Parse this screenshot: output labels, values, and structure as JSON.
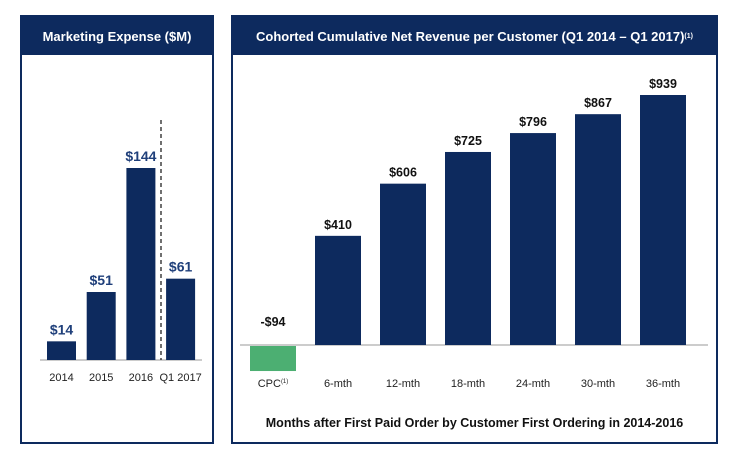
{
  "chart_data": [
    {
      "type": "bar",
      "title": "Marketing Expense ($M)",
      "categories": [
        "2014",
        "2015",
        "2016",
        "Q1 2017"
      ],
      "values": [
        14,
        51,
        144,
        61
      ],
      "data_labels": [
        "$14",
        "$51",
        "$144",
        "$61"
      ],
      "ylim": [
        0,
        150
      ],
      "grid": false,
      "bar_color": "#0d2a5e",
      "label_color": "#1f3f7a",
      "separator": "dashed line before Q1 2017"
    },
    {
      "type": "bar",
      "title": "Cohorted Cumulative Net Revenue per Customer (Q1 2014 – Q1 2017)",
      "title_footnote": "(1)",
      "categories": [
        "CPC",
        "6-mth",
        "12-mth",
        "18-mth",
        "24-mth",
        "30-mth",
        "36-mth"
      ],
      "category_footnotes": [
        "(1)",
        "",
        "",
        "",
        "",
        "",
        ""
      ],
      "values": [
        -94,
        410,
        606,
        725,
        796,
        867,
        939
      ],
      "data_labels": [
        "-$94",
        "$410",
        "$606",
        "$725",
        "$796",
        "$867",
        "$939"
      ],
      "xlabel": "Months after First Paid Order by Customer First Ordering in 2014-2016",
      "ylim": [
        -100,
        950
      ],
      "grid": false,
      "bar_color": "#0d2a5e",
      "negative_color": "#4caf72"
    }
  ]
}
